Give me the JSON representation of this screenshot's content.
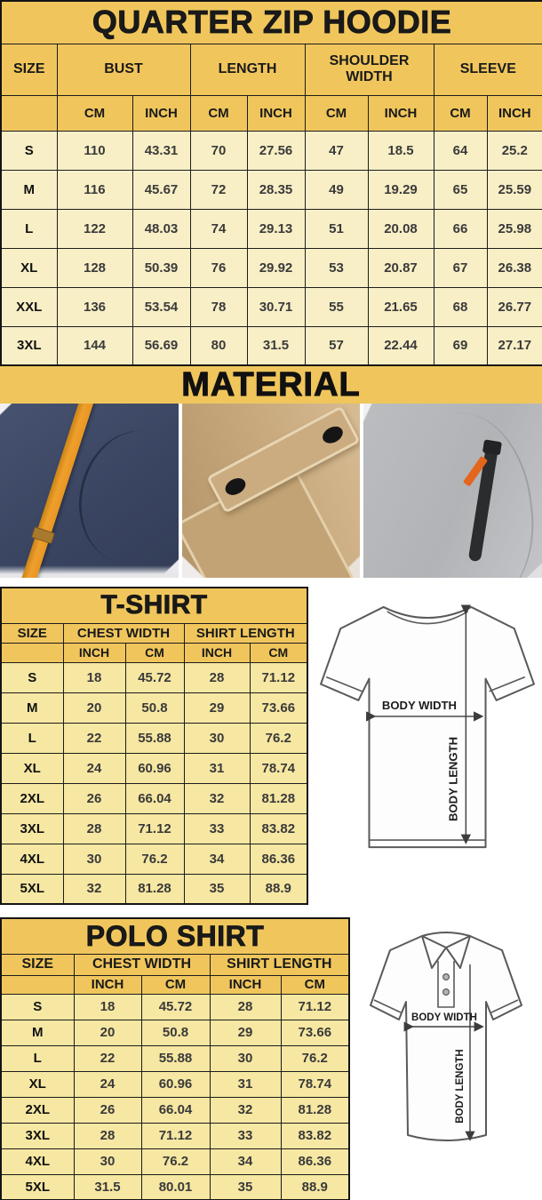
{
  "colors": {
    "header_gold": "#F0C65C",
    "hoodie_row_bg": "#F8EFC6",
    "shirt_row_bg": "#F6E7A2",
    "border": "#1c1c1c",
    "navy_fabric": "#3A4562",
    "orange_strap": "#EF9F2D",
    "khaki_fabric": "#C8A97D",
    "gray_fabric": "#B1B3B6",
    "zipper_orange": "#E4651C"
  },
  "hoodie": {
    "title": "QUARTER ZIP HOODIE",
    "col_size": "SIZE",
    "groups": [
      "BUST",
      "LENGTH",
      "SHOULDER WIDTH",
      "SLEEVE"
    ],
    "units": [
      "CM",
      "INCH",
      "CM",
      "INCH",
      "CM",
      "INCH",
      "CM",
      "INCH"
    ],
    "rows": [
      {
        "size": "S",
        "values": [
          "110",
          "43.31",
          "70",
          "27.56",
          "47",
          "18.5",
          "64",
          "25.2"
        ]
      },
      {
        "size": "M",
        "values": [
          "116",
          "45.67",
          "72",
          "28.35",
          "49",
          "19.29",
          "65",
          "25.59"
        ]
      },
      {
        "size": "L",
        "values": [
          "122",
          "48.03",
          "74",
          "29.13",
          "51",
          "20.08",
          "66",
          "25.98"
        ]
      },
      {
        "size": "XL",
        "values": [
          "128",
          "50.39",
          "76",
          "29.92",
          "53",
          "20.87",
          "67",
          "26.38"
        ]
      },
      {
        "size": "XXL",
        "values": [
          "136",
          "53.54",
          "78",
          "30.71",
          "55",
          "21.65",
          "68",
          "26.77"
        ]
      },
      {
        "size": "3XL",
        "values": [
          "144",
          "56.69",
          "80",
          "31.5",
          "57",
          "22.44",
          "69",
          "27.17"
        ]
      }
    ]
  },
  "material": {
    "title": "MATERIAL",
    "photos": [
      {
        "name": "navy-fleece-orange-drawstring-photo"
      },
      {
        "name": "khaki-twill-snap-pocket-photo"
      },
      {
        "name": "gray-fleece-zip-pocket-photo"
      }
    ]
  },
  "tshirt": {
    "title": "T-SHIRT",
    "col_size": "SIZE",
    "groups": [
      "CHEST WIDTH",
      "SHIRT LENGTH"
    ],
    "units": [
      "INCH",
      "CM",
      "INCH",
      "CM"
    ],
    "rows": [
      {
        "size": "S",
        "values": [
          "18",
          "45.72",
          "28",
          "71.12"
        ]
      },
      {
        "size": "M",
        "values": [
          "20",
          "50.8",
          "29",
          "73.66"
        ]
      },
      {
        "size": "L",
        "values": [
          "22",
          "55.88",
          "30",
          "76.2"
        ]
      },
      {
        "size": "XL",
        "values": [
          "24",
          "60.96",
          "31",
          "78.74"
        ]
      },
      {
        "size": "2XL",
        "values": [
          "26",
          "66.04",
          "32",
          "81.28"
        ]
      },
      {
        "size": "3XL",
        "values": [
          "28",
          "71.12",
          "33",
          "83.82"
        ]
      },
      {
        "size": "4XL",
        "values": [
          "30",
          "76.2",
          "34",
          "86.36"
        ]
      },
      {
        "size": "5XL",
        "values": [
          "32",
          "81.28",
          "35",
          "88.9"
        ]
      }
    ],
    "diagram": {
      "width_label": "BODY WIDTH",
      "length_label": "BODY LENGTH"
    }
  },
  "polo": {
    "title": "POLO SHIRT",
    "col_size": "SIZE",
    "groups": [
      "CHEST WIDTH",
      "SHIRT LENGTH"
    ],
    "units": [
      "INCH",
      "CM",
      "INCH",
      "CM"
    ],
    "rows": [
      {
        "size": "S",
        "values": [
          "18",
          "45.72",
          "28",
          "71.12"
        ]
      },
      {
        "size": "M",
        "values": [
          "20",
          "50.8",
          "29",
          "73.66"
        ]
      },
      {
        "size": "L",
        "values": [
          "22",
          "55.88",
          "30",
          "76.2"
        ]
      },
      {
        "size": "XL",
        "values": [
          "24",
          "60.96",
          "31",
          "78.74"
        ]
      },
      {
        "size": "2XL",
        "values": [
          "26",
          "66.04",
          "32",
          "81.28"
        ]
      },
      {
        "size": "3XL",
        "values": [
          "28",
          "71.12",
          "33",
          "83.82"
        ]
      },
      {
        "size": "4XL",
        "values": [
          "30",
          "76.2",
          "34",
          "86.36"
        ]
      },
      {
        "size": "5XL",
        "values": [
          "31.5",
          "80.01",
          "35",
          "88.9"
        ]
      }
    ],
    "diagram": {
      "width_label": "BODY WIDTH",
      "length_label": "BODY LENGTH"
    }
  }
}
